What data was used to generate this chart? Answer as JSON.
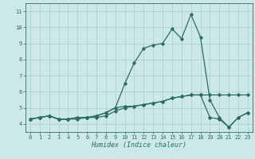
{
  "xlabel": "Humidex (Indice chaleur)",
  "x": [
    0,
    1,
    2,
    3,
    4,
    5,
    6,
    7,
    8,
    9,
    10,
    11,
    12,
    13,
    14,
    15,
    16,
    17,
    18,
    19,
    20,
    21,
    22,
    23
  ],
  "series1": [
    4.3,
    4.4,
    4.5,
    4.3,
    4.3,
    4.3,
    4.4,
    4.4,
    4.5,
    4.8,
    5.0,
    5.1,
    5.2,
    5.3,
    5.4,
    5.6,
    5.7,
    5.8,
    5.8,
    5.8,
    5.8,
    5.8,
    5.8,
    5.8
  ],
  "series2": [
    4.3,
    4.4,
    4.5,
    4.3,
    4.3,
    4.4,
    4.4,
    4.5,
    4.7,
    5.0,
    6.5,
    7.8,
    8.7,
    8.9,
    9.0,
    9.9,
    9.3,
    10.8,
    9.4,
    5.5,
    4.4,
    3.8,
    4.4,
    4.7
  ],
  "series3": [
    4.3,
    4.4,
    4.5,
    4.3,
    4.3,
    4.4,
    4.4,
    4.5,
    4.7,
    5.0,
    5.1,
    5.1,
    5.2,
    5.3,
    5.4,
    5.6,
    5.7,
    5.8,
    5.8,
    4.4,
    4.3,
    3.8,
    4.4,
    4.7
  ],
  "line_color": "#2a6e63",
  "bg_color": "#cce8e8",
  "grid_color": "#aacece",
  "ylim": [
    3.5,
    11.5
  ],
  "xlim": [
    -0.5,
    23.5
  ],
  "yticks": [
    4,
    5,
    6,
    7,
    8,
    9,
    10,
    11
  ],
  "xticks": [
    0,
    1,
    2,
    3,
    4,
    5,
    6,
    7,
    8,
    9,
    10,
    11,
    12,
    13,
    14,
    15,
    16,
    17,
    18,
    19,
    20,
    21,
    22,
    23
  ]
}
